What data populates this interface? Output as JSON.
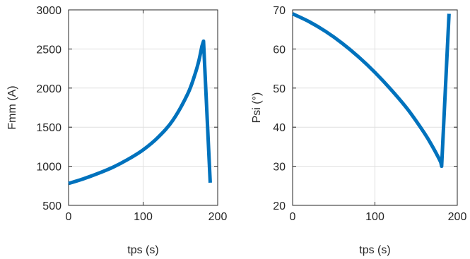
{
  "chart_data": [
    {
      "type": "line",
      "xlabel": "tps (s)",
      "ylabel": "Fmm (A)",
      "xlim": [
        0,
        200
      ],
      "ylim": [
        500,
        3000
      ],
      "xticks": [
        0,
        100,
        200
      ],
      "yticks": [
        500,
        1000,
        1500,
        2000,
        2500,
        3000
      ],
      "grid": true,
      "color": "#0072bd",
      "x": [
        0,
        20,
        40,
        60,
        80,
        100,
        120,
        140,
        160,
        170,
        175,
        179,
        181,
        190
      ],
      "y": [
        780,
        840,
        910,
        990,
        1090,
        1210,
        1370,
        1590,
        1930,
        2190,
        2360,
        2540,
        2600,
        790
      ]
    },
    {
      "type": "line",
      "xlabel": "tps (s)",
      "ylabel": "Psi (°)",
      "xlim": [
        0,
        200
      ],
      "ylim": [
        20,
        70
      ],
      "xticks": [
        0,
        100,
        200
      ],
      "yticks": [
        20,
        30,
        40,
        50,
        60,
        70
      ],
      "grid": true,
      "color": "#0072bd",
      "x": [
        0,
        20,
        40,
        60,
        80,
        100,
        120,
        140,
        160,
        170,
        180,
        181,
        190
      ],
      "y": [
        69,
        67,
        64.5,
        61.5,
        58,
        54,
        49.5,
        44.5,
        38.5,
        35,
        31,
        30,
        69
      ]
    }
  ]
}
